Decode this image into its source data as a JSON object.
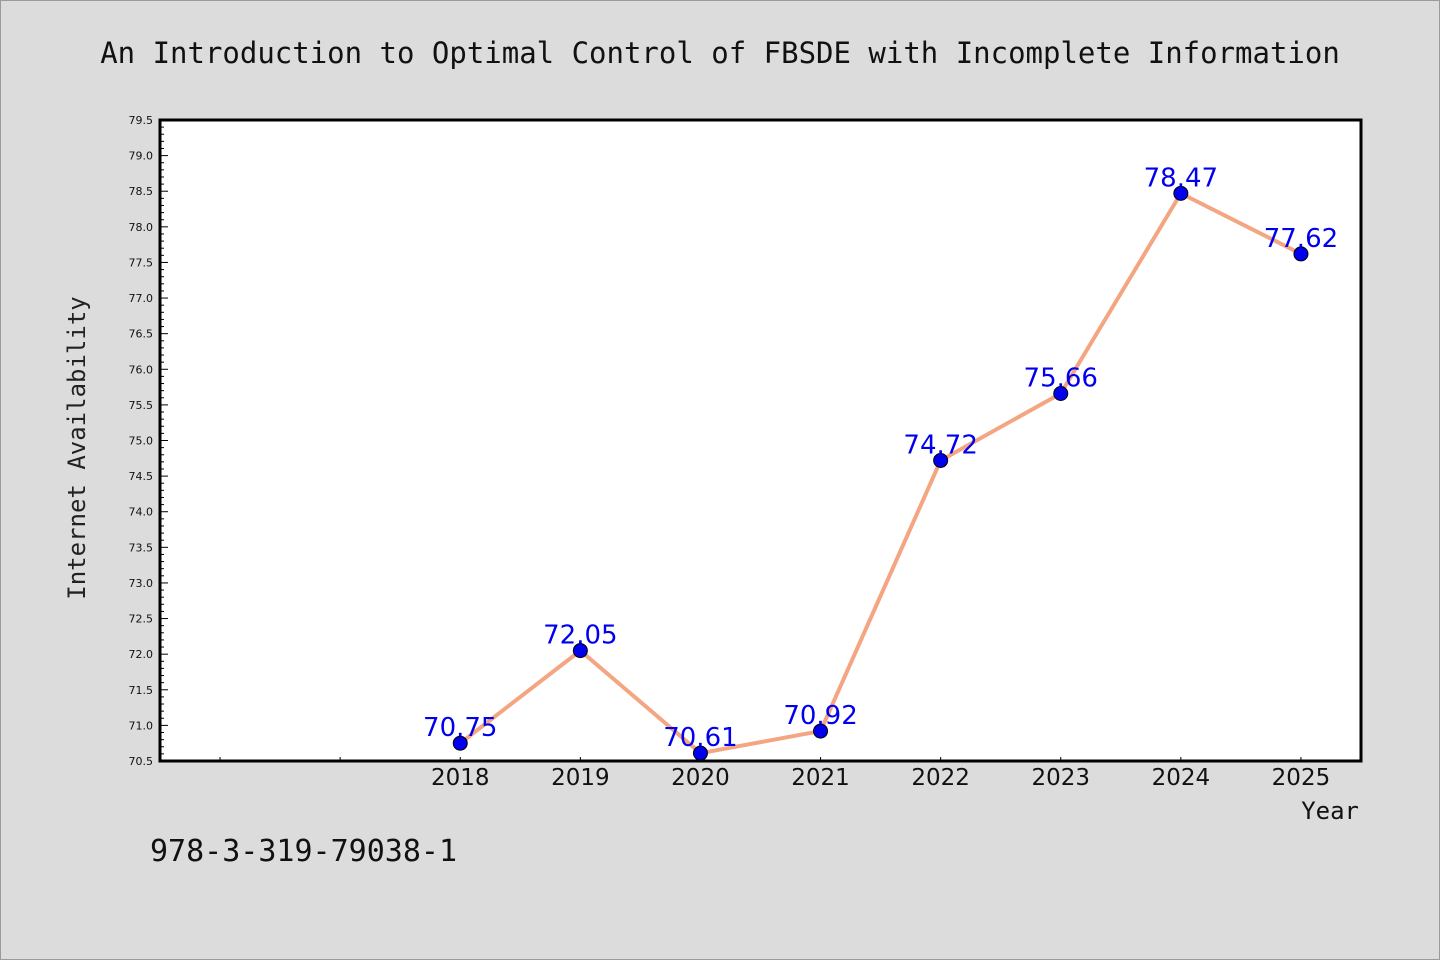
{
  "chart_data": {
    "type": "line",
    "title": "An Introduction to Optimal Control of FBSDE with Incomplete Information",
    "xlabel": "Year",
    "ylabel": "Internet Availability",
    "categories": [
      "2018",
      "2019",
      "2020",
      "2021",
      "2022",
      "2023",
      "2024",
      "2025"
    ],
    "values": [
      70.75,
      72.05,
      70.61,
      70.92,
      74.72,
      75.66,
      78.47,
      77.62
    ],
    "data_labels": [
      "70.75",
      "72.05",
      "70.61",
      "70.92",
      "74.72",
      "75.66",
      "78.47",
      "77.62"
    ],
    "ylim": [
      70.5,
      79.5
    ],
    "yticks": [
      "70.5",
      "71.0",
      "71.5",
      "72.0",
      "72.5",
      "73.0",
      "73.5",
      "74.0",
      "74.5",
      "75.0",
      "75.5",
      "76.0",
      "76.5",
      "77.0",
      "77.5",
      "78.0",
      "78.5",
      "79.0",
      "79.5"
    ],
    "xlim": [
      2015.5,
      2025.5
    ],
    "grid": false,
    "legend": "none",
    "colors": {
      "line": "#f4a582",
      "marker": "#0000ee",
      "label": "#0000ee",
      "background": "#dcdcdc",
      "plot_background": "#ffffff"
    }
  },
  "footer": {
    "isbn": "978-3-319-79038-1"
  }
}
